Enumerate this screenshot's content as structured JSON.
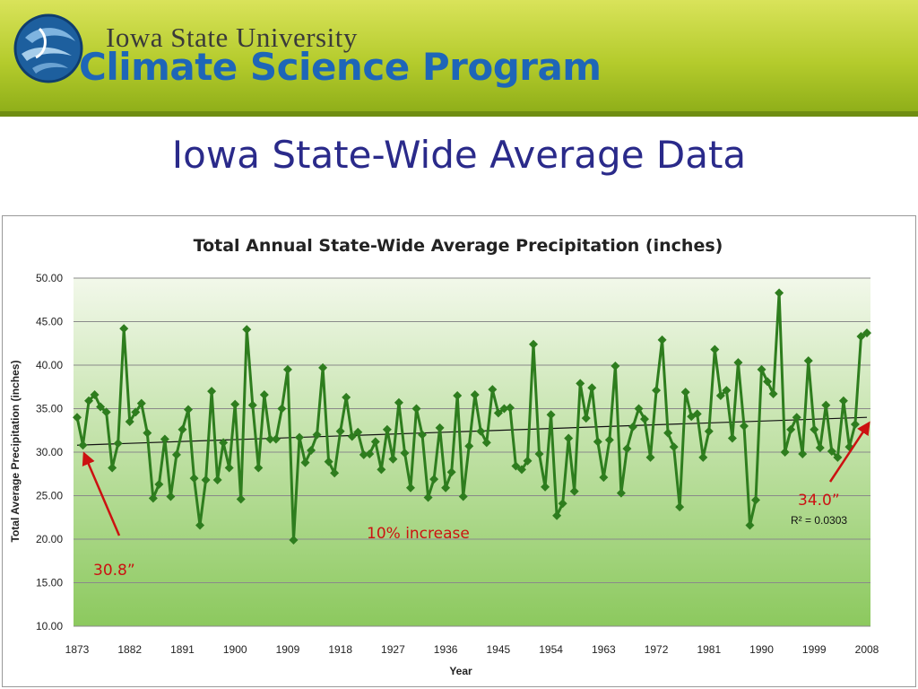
{
  "header": {
    "university": "Iowa State University",
    "program": "Climate Science Program",
    "logo_icon": "globe-swirl-logo-icon"
  },
  "slide": {
    "title": "Iowa State-Wide Average Data"
  },
  "colors": {
    "series": "#2e7d1e",
    "trend": "#111111",
    "annotation": "#cc1111",
    "title": "#2a2a8a",
    "program_text": "#1e66b8"
  },
  "chart_data": {
    "type": "line",
    "title": "Total Annual State-Wide Average Precipitation (inches)",
    "xlabel": "Year",
    "ylabel": "Total Average Precipitation (inches)",
    "xlim": [
      1873,
      2008
    ],
    "ylim": [
      10,
      50
    ],
    "grid": true,
    "x_ticks": [
      "1873",
      "1882",
      "1891",
      "1900",
      "1909",
      "1918",
      "1927",
      "1936",
      "1945",
      "1954",
      "1963",
      "1972",
      "1981",
      "1990",
      "1999",
      "2008"
    ],
    "y_ticks": [
      "10.00",
      "15.00",
      "20.00",
      "25.00",
      "30.00",
      "35.00",
      "40.00",
      "45.00",
      "50.00"
    ],
    "series": [
      {
        "x": [
          1873,
          1874,
          1875,
          1876,
          1877,
          1878,
          1879,
          1880,
          1881,
          1882,
          1883,
          1884,
          1885,
          1886,
          1887,
          1888,
          1889,
          1890,
          1891,
          1892,
          1893,
          1894,
          1895,
          1896,
          1897,
          1898,
          1899,
          1900,
          1901,
          1902,
          1903,
          1904,
          1905,
          1906,
          1907,
          1908,
          1909,
          1910,
          1911,
          1912,
          1913,
          1914,
          1915,
          1916,
          1917,
          1918,
          1919,
          1920,
          1921,
          1922,
          1923,
          1924,
          1925,
          1926,
          1927,
          1928,
          1929,
          1930,
          1931,
          1932,
          1933,
          1934,
          1935,
          1936,
          1937,
          1938,
          1939,
          1940,
          1941,
          1942,
          1943,
          1944,
          1945,
          1946,
          1947,
          1948,
          1949,
          1950,
          1951,
          1952,
          1953,
          1954,
          1955,
          1956,
          1957,
          1958,
          1959,
          1960,
          1961,
          1962,
          1963,
          1964,
          1965,
          1966,
          1967,
          1968,
          1969,
          1970,
          1971,
          1972,
          1973,
          1974,
          1975,
          1976,
          1977,
          1978,
          1979,
          1980,
          1981,
          1982,
          1983,
          1984,
          1985,
          1986,
          1987,
          1988,
          1989,
          1990,
          1991,
          1992,
          1993,
          1994,
          1995,
          1996,
          1997,
          1998,
          1999,
          2000,
          2001,
          2002,
          2003,
          2004,
          2005,
          2006,
          2007,
          2008
        ],
        "values": [
          34.0,
          30.8,
          35.9,
          36.6,
          35.2,
          34.6,
          28.2,
          31.0,
          44.2,
          33.5,
          34.6,
          35.6,
          32.2,
          24.7,
          26.3,
          31.5,
          24.9,
          29.7,
          32.6,
          34.9,
          27.0,
          21.6,
          26.8,
          37.0,
          26.8,
          31.1,
          28.2,
          35.5,
          24.6,
          44.1,
          35.4,
          28.2,
          36.6,
          31.5,
          31.5,
          35.0,
          39.5,
          19.9,
          31.7,
          28.8,
          30.2,
          32.0,
          39.7,
          28.9,
          27.6,
          32.4,
          36.3,
          31.8,
          32.3,
          29.7,
          29.8,
          31.2,
          28.0,
          32.6,
          29.2,
          35.7,
          29.9,
          25.9,
          35.0,
          32.0,
          24.8,
          26.9,
          32.8,
          25.9,
          27.7,
          36.5,
          24.9,
          30.7,
          36.6,
          32.4,
          31.1,
          37.2,
          34.5,
          35.0,
          35.1,
          28.4,
          28.0,
          29.0,
          42.4,
          29.8,
          26.0,
          34.3,
          22.7,
          24.1,
          31.6,
          25.5,
          37.9,
          33.9,
          37.4,
          31.2,
          27.1,
          31.4,
          39.9,
          25.3,
          30.4,
          32.9,
          35.0,
          33.8,
          29.4,
          37.1,
          42.9,
          32.2,
          30.6,
          23.7,
          36.9,
          34.1,
          34.4,
          29.4,
          32.4,
          41.8,
          36.5,
          37.1,
          31.6,
          40.3,
          33.0,
          21.6,
          24.5,
          39.5,
          38.1,
          36.7,
          48.3,
          30.0,
          32.6,
          34.0,
          29.8,
          40.5,
          32.6,
          30.5,
          35.4,
          30.1,
          29.4,
          35.9,
          30.6,
          33.2,
          43.3,
          43.7
        ]
      }
    ],
    "trendline": {
      "start": [
        1873,
        30.8
      ],
      "end": [
        2008,
        34.0
      ]
    },
    "annotations": {
      "start_value": "30.8”",
      "end_value": "34.0”",
      "increase": "10% increase",
      "r_squared": "R² = 0.0303"
    }
  }
}
